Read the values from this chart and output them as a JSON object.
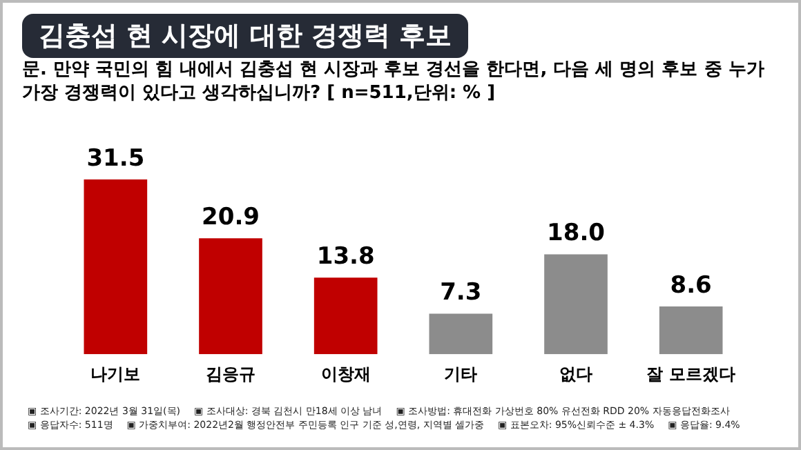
{
  "chart_data": {
    "type": "bar",
    "title": "김충섭 현 시장에 대한 경쟁력 후보",
    "subtitle": "문. 만약 국민의 힘 내에서 김충섭 현 시장과 후보 경선을 한다면, 다음 세 명의 후보 중 누가 가장 경쟁력이 있다고 생각하십니까? [ n=511,단위: % ]",
    "categories": [
      "나기보",
      "김응규",
      "이창재",
      "기타",
      "없다",
      "잘 모르겠다"
    ],
    "values": [
      31.5,
      20.9,
      13.8,
      7.3,
      18.0,
      8.6
    ],
    "colors": [
      "#c00000",
      "#c00000",
      "#c00000",
      "#8c8c8c",
      "#8c8c8c",
      "#8c8c8c"
    ],
    "value_labels": [
      "31.5",
      "20.9",
      "13.8",
      "7.3",
      "18.0",
      "8.6"
    ],
    "annotations": [
      "▣ 조사기간: 2022년 3월 31일(목)",
      "▣ 조사대상: 경북 김천시 만18세 이상 남녀",
      "▣ 조사방법: 휴대전화 가상번호 80% 유선전화 RDD 20% 자동응답전화조사",
      "▣ 응답자수: 511명",
      "▣ 가중치부여: 2022년2월 행정안전부 주민등록 인구 기준 성,연령, 지역별 셀가중",
      "▣ 표본오차: 95%신뢰수준 ± 4.3%",
      "▣ 응답율: 9.4%"
    ],
    "grid": false,
    "legend": false
  }
}
